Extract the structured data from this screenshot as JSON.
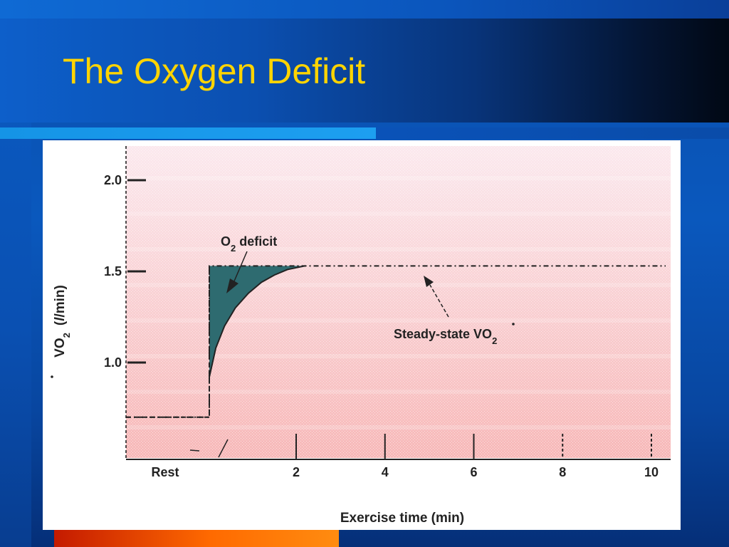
{
  "slide": {
    "title": "The Oxygen Deficit"
  },
  "colors": {
    "title_text": "#ffd400",
    "deficit_fill": "#2e6b70",
    "plot_pink_top": "#fbe9ee",
    "plot_pink_bottom": "#f7b8b8",
    "ink": "#222222"
  },
  "chart_data": {
    "type": "line",
    "xlabel": "Exercise time (min)",
    "ylabel": {
      "main": "VO",
      "sub": "2",
      "unit_open": "(",
      "unit_italic": "l",
      "unit_close": "/min)"
    },
    "xlim": [
      -2,
      11
    ],
    "ylim": [
      0.5,
      2.2
    ],
    "x_ticks": [
      {
        "value": 2,
        "label": "2",
        "style": "solid"
      },
      {
        "value": 4,
        "label": "4",
        "style": "solid"
      },
      {
        "value": 6,
        "label": "6",
        "style": "solid"
      },
      {
        "value": 8,
        "label": "8",
        "style": "dashed"
      },
      {
        "value": 10,
        "label": "10",
        "style": "dashed"
      }
    ],
    "x_rest_label": "Rest",
    "y_ticks": [
      {
        "value": 1.0,
        "label": "1.0"
      },
      {
        "value": 1.5,
        "label": "1.5"
      },
      {
        "value": 2.0,
        "label": "2.0"
      }
    ],
    "series": [
      {
        "kind": "demand",
        "points": [
          [
            -2,
            0.7
          ],
          [
            0,
            0.7
          ],
          [
            0,
            1.53
          ],
          [
            11,
            1.53
          ]
        ]
      },
      {
        "kind": "actual",
        "points": [
          [
            0,
            0.92
          ],
          [
            0.15,
            1.08
          ],
          [
            0.35,
            1.2
          ],
          [
            0.6,
            1.3
          ],
          [
            0.9,
            1.38
          ],
          [
            1.2,
            1.44
          ],
          [
            1.5,
            1.48
          ],
          [
            1.8,
            1.51
          ],
          [
            2.2,
            1.53
          ],
          [
            11,
            1.53
          ]
        ]
      }
    ],
    "annotations": [
      {
        "name": "o2-deficit",
        "text_main": "O",
        "text_sub": "2",
        "text_rest": " deficit",
        "target_x": 0.5,
        "target_y": 1.43
      },
      {
        "name": "steady-state",
        "text_main": "Steady-state VO",
        "text_sub": "2",
        "target_x": 7.0,
        "target_y": 1.53
      }
    ],
    "steady_state_vo2": 1.53,
    "rest_vo2": 0.7
  }
}
